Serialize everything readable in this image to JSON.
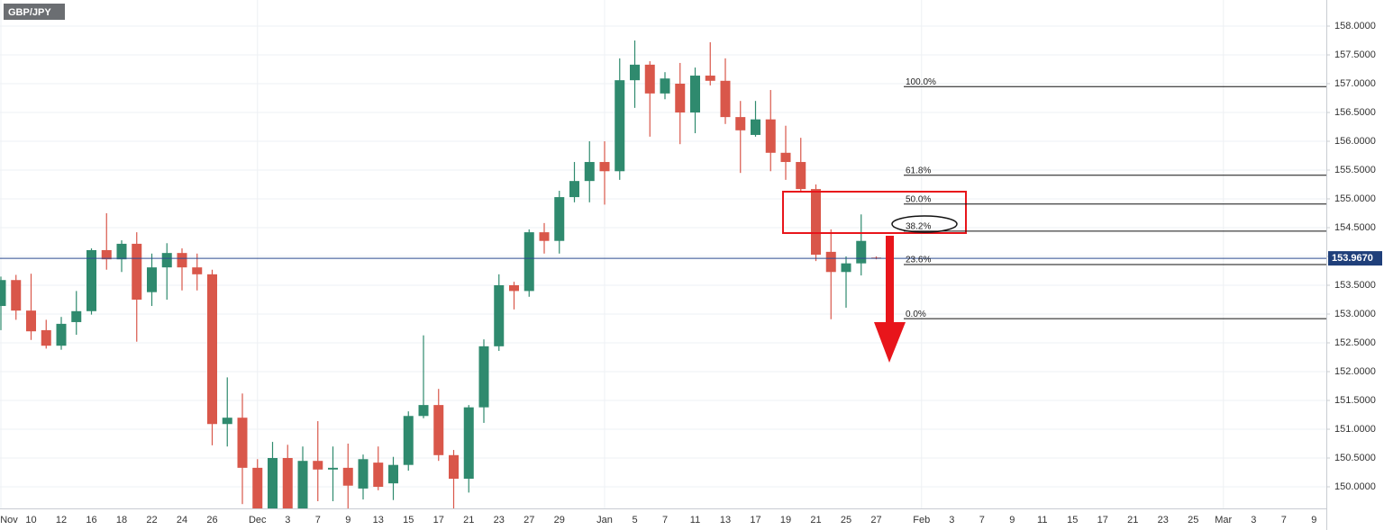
{
  "chart_data": {
    "type": "candlestick",
    "symbol": "GBP/JPY",
    "up_color": "#2f8a6e",
    "down_color": "#d9574a",
    "categories": [
      "Nov",
      null,
      "10",
      null,
      "12",
      null,
      "16",
      null,
      "18",
      null,
      "22",
      null,
      "24",
      null,
      "26",
      null,
      null,
      "Dec",
      null,
      "3",
      null,
      "7",
      null,
      "9",
      null,
      "13",
      null,
      "15",
      null,
      "17",
      null,
      "21",
      null,
      "23",
      null,
      "27",
      null,
      "29",
      null,
      null,
      "Jan",
      null,
      "5",
      null,
      "7",
      null,
      "11",
      null,
      "13",
      null,
      "17",
      null,
      "19",
      null,
      "21",
      null,
      "25",
      null,
      "27",
      null,
      null,
      "Feb",
      null,
      "3",
      null,
      "7",
      null,
      "9",
      null,
      "11",
      null,
      "15",
      null,
      "17",
      null,
      "21",
      null,
      "23",
      null,
      "25",
      null,
      "Mar",
      null,
      "3",
      null,
      "7",
      null,
      "9"
    ],
    "open": [
      153.14,
      153.59,
      153.06,
      152.72,
      152.45,
      152.86,
      153.05,
      154.11,
      153.95,
      154.22,
      153.38,
      153.81,
      154.06,
      153.81,
      153.69,
      151.09,
      151.2,
      150.33,
      149.55,
      150.5,
      149.6,
      150.45,
      150.3,
      150.33,
      149.97,
      150.42,
      150.06,
      150.38,
      151.23,
      151.42,
      150.55,
      150.14,
      151.38,
      152.44,
      153.5,
      153.4,
      154.42,
      154.27,
      155.03,
      155.31,
      155.64,
      155.48,
      157.06,
      157.33,
      156.83,
      157.0,
      156.5,
      157.14,
      157.05,
      156.42,
      156.11,
      156.38,
      155.8,
      155.64,
      155.17,
      154.08,
      153.73,
      153.88,
      153.98,
      null,
      null,
      null,
      null,
      null,
      null,
      null,
      null,
      null,
      null,
      null,
      null,
      null,
      null,
      null,
      null,
      null,
      null,
      null,
      null,
      null,
      null,
      null,
      null,
      null,
      null,
      null,
      null,
      null
    ],
    "high": [
      153.65,
      153.68,
      153.7,
      152.9,
      152.95,
      153.4,
      154.14,
      154.75,
      154.28,
      154.42,
      154.05,
      154.23,
      154.14,
      154.05,
      153.77,
      151.9,
      151.62,
      150.48,
      150.78,
      150.73,
      150.7,
      151.14,
      150.7,
      150.75,
      150.56,
      150.7,
      150.52,
      151.31,
      152.63,
      151.7,
      150.64,
      151.42,
      152.56,
      153.69,
      153.56,
      154.47,
      154.58,
      155.14,
      155.64,
      156.0,
      156.0,
      157.44,
      157.75,
      157.39,
      157.2,
      157.36,
      157.28,
      157.72,
      157.44,
      156.7,
      156.7,
      156.89,
      156.27,
      156.06,
      155.25,
      154.47,
      154.0,
      154.73,
      154.0,
      null,
      null,
      null,
      null,
      null,
      null,
      null,
      null,
      null,
      null,
      null,
      null,
      null,
      null,
      null,
      null,
      null,
      null,
      null,
      null,
      null,
      null,
      null,
      null,
      null,
      null,
      null,
      null,
      null
    ],
    "low": [
      152.72,
      152.9,
      152.55,
      152.4,
      152.38,
      152.64,
      152.99,
      153.77,
      153.73,
      152.52,
      153.14,
      153.25,
      153.41,
      153.41,
      150.72,
      150.7,
      149.7,
      149.4,
      149.4,
      149.4,
      149.4,
      149.75,
      149.75,
      149.62,
      149.78,
      149.94,
      149.77,
      150.28,
      151.19,
      150.45,
      149.6,
      149.9,
      151.11,
      152.36,
      153.08,
      153.3,
      154.05,
      154.05,
      154.94,
      154.94,
      154.9,
      155.33,
      156.58,
      156.08,
      156.73,
      155.95,
      156.14,
      156.97,
      156.3,
      155.45,
      156.08,
      155.48,
      155.33,
      155.13,
      153.92,
      152.91,
      153.11,
      153.67,
      153.95,
      null,
      null,
      null,
      null,
      null,
      null,
      null,
      null,
      null,
      null,
      null,
      null,
      null,
      null,
      null,
      null,
      null,
      null,
      null,
      null,
      null,
      null,
      null,
      null,
      null,
      null,
      null,
      null,
      null
    ],
    "close": [
      153.59,
      153.06,
      152.7,
      152.45,
      152.83,
      153.05,
      154.11,
      153.95,
      154.22,
      153.25,
      153.81,
      154.06,
      153.81,
      153.69,
      151.09,
      151.2,
      150.33,
      149.55,
      150.5,
      149.55,
      150.45,
      150.3,
      150.33,
      150.02,
      150.48,
      150.0,
      150.38,
      151.23,
      151.42,
      150.55,
      150.14,
      151.38,
      152.44,
      153.5,
      153.4,
      154.42,
      154.27,
      155.03,
      155.31,
      155.64,
      155.48,
      157.06,
      157.33,
      156.83,
      157.09,
      156.5,
      157.14,
      157.05,
      156.42,
      156.19,
      156.38,
      155.8,
      155.64,
      155.17,
      154.03,
      153.73,
      153.88,
      154.27,
      153.967,
      null,
      null,
      null,
      null,
      null,
      null,
      null,
      null,
      null,
      null,
      null,
      null,
      null,
      null,
      null,
      null,
      null,
      null,
      null,
      null,
      null,
      null,
      null,
      null,
      null,
      null,
      null,
      null,
      null
    ],
    "ylim": [
      149.625,
      158.453
    ],
    "yticks": [
      {
        "value": 150,
        "label": "150.0000"
      },
      {
        "value": 150.5,
        "label": "150.5000"
      },
      {
        "value": 151,
        "label": "151.0000"
      },
      {
        "value": 151.5,
        "label": "151.5000"
      },
      {
        "value": 152,
        "label": "152.0000"
      },
      {
        "value": 152.5,
        "label": "152.5000"
      },
      {
        "value": 153,
        "label": "153.0000"
      },
      {
        "value": 153.5,
        "label": "153.5000"
      },
      {
        "value": 154,
        "label": "154.0000"
      },
      {
        "value": 154.5,
        "label": "154.5000"
      },
      {
        "value": 155,
        "label": "155.0000"
      },
      {
        "value": 155.5,
        "label": "155.5000"
      },
      {
        "value": 156,
        "label": "156.0000"
      },
      {
        "value": 156.5,
        "label": "156.5000"
      },
      {
        "value": 157,
        "label": "157.0000"
      },
      {
        "value": 157.5,
        "label": "157.5000"
      },
      {
        "value": 158,
        "label": "158.0000"
      }
    ],
    "grid": true,
    "last_price": {
      "value": 153.967,
      "label": "153.9670"
    },
    "fib_levels": {
      "labels": [
        "100.0%",
        "61.8%",
        "50.0%",
        "38.2%",
        "23.6%",
        "0.0%"
      ],
      "values": [
        156.95,
        155.41,
        154.91,
        154.44,
        153.86,
        152.92
      ]
    }
  }
}
